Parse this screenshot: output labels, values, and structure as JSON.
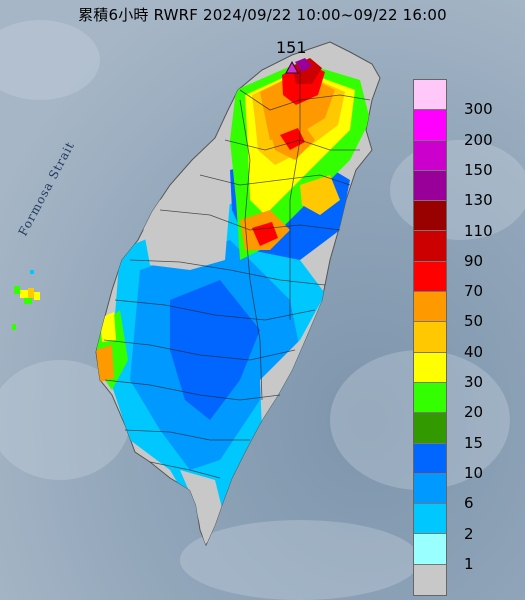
{
  "title": "累積6小時 RWRF 2024/09/22 10:00~09/22 16:00",
  "strait_label": "Formosa Strait",
  "max_value": "151",
  "legend": [
    {
      "label": "300",
      "color": "#ffc8f8"
    },
    {
      "label": "200",
      "color": "#ff00ff"
    },
    {
      "label": "150",
      "color": "#cc00cc"
    },
    {
      "label": "130",
      "color": "#990099"
    },
    {
      "label": "110",
      "color": "#990000"
    },
    {
      "label": "90",
      "color": "#cc0000"
    },
    {
      "label": "70",
      "color": "#ff0000"
    },
    {
      "label": "50",
      "color": "#ff9900"
    },
    {
      "label": "40",
      "color": "#ffc800"
    },
    {
      "label": "30",
      "color": "#ffff00"
    },
    {
      "label": "20",
      "color": "#33ff00"
    },
    {
      "label": "15",
      "color": "#339900"
    },
    {
      "label": "10",
      "color": "#0066ff"
    },
    {
      "label": "6",
      "color": "#0099ff"
    },
    {
      "label": "2",
      "color": "#00c8ff"
    },
    {
      "label": "1",
      "color": "#99ffff"
    },
    {
      "label": "",
      "color": "#c8c8c8"
    }
  ]
}
